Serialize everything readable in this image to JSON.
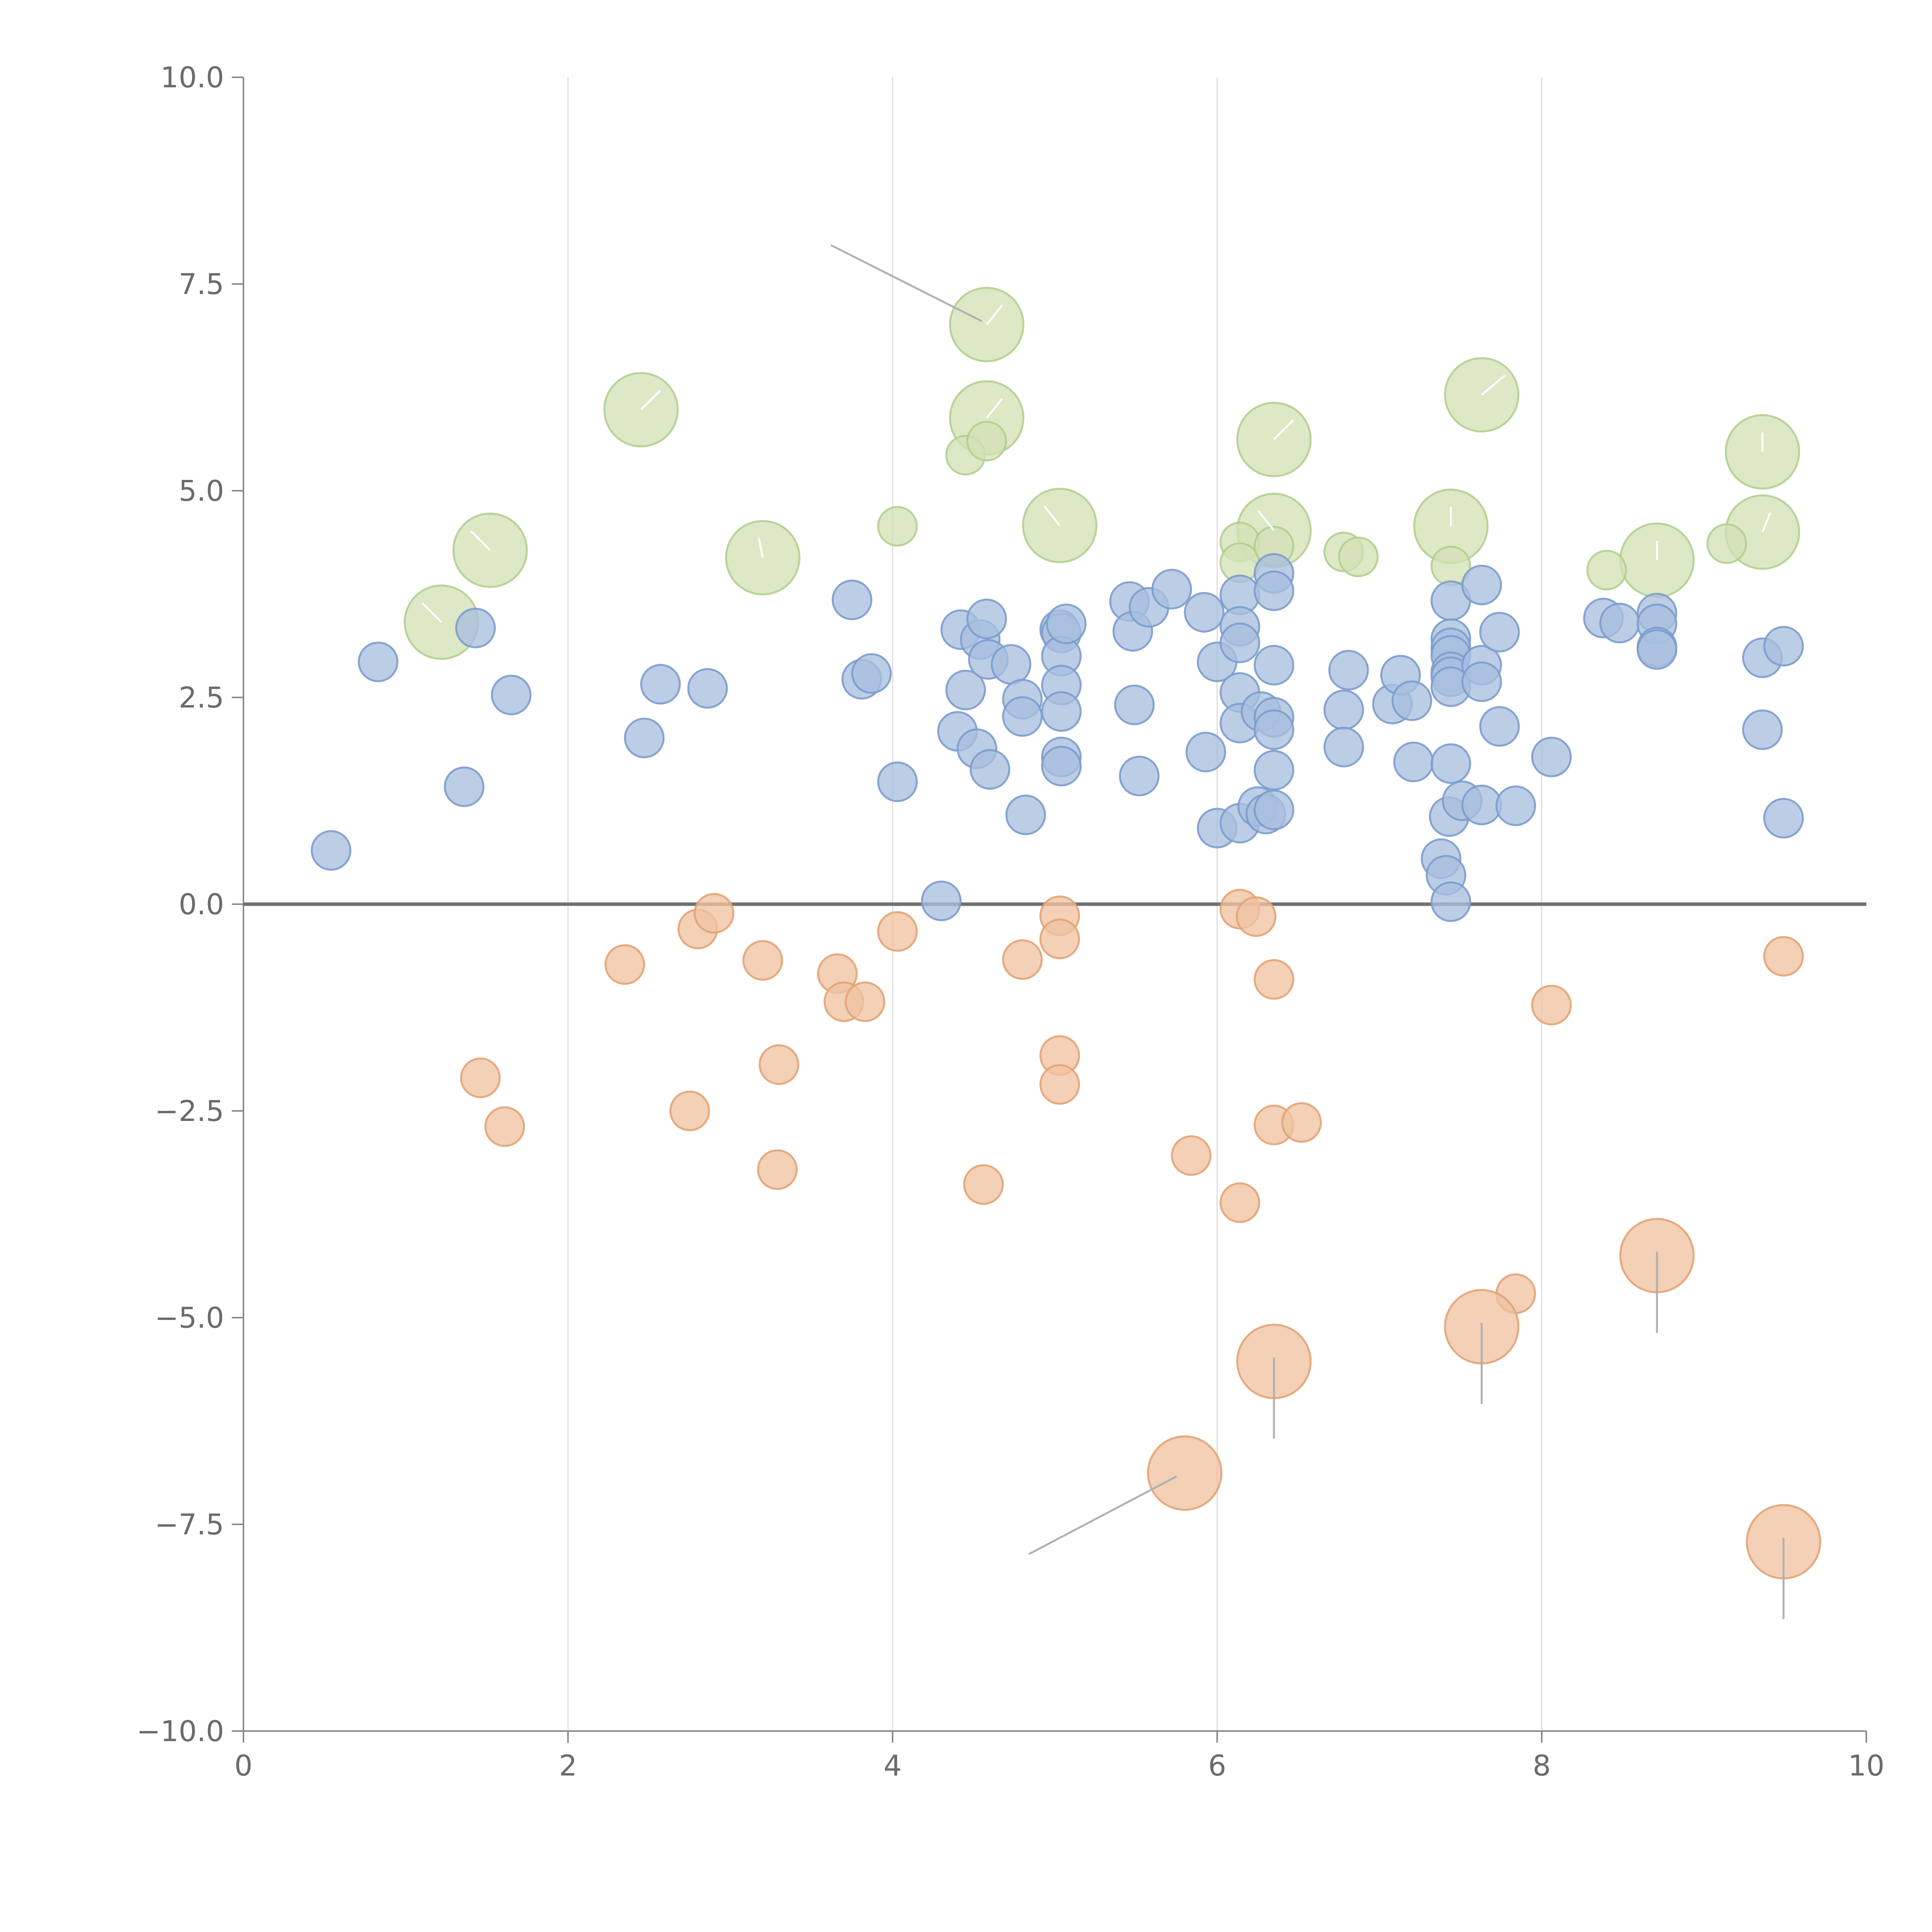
{
  "chart_data": {
    "type": "scatter",
    "title": "",
    "xlabel": "",
    "ylabel": "",
    "xlim": [
      0,
      10
    ],
    "ylim": [
      -10,
      10
    ],
    "grid": "vertical",
    "x_ticks": [
      "0",
      "2",
      "4",
      "6",
      "8",
      "10"
    ],
    "y_ticks": [
      "−10.0",
      "−7.5",
      "−5.0",
      "−2.5",
      "0.0",
      "2.5",
      "5.0",
      "7.5",
      "10.0"
    ],
    "colors": {
      "blue_fill": "#a9bfdf",
      "blue_stroke": "#7b9ccd",
      "orange_fill": "#f0c3a1",
      "orange_stroke": "#e3a273",
      "green_fill": "#d3e2b6",
      "green_stroke": "#b3cf8e"
    },
    "series": [
      {
        "name": "blue",
        "points": [
          [
            0.54,
            0.65
          ],
          [
            0.83,
            2.93
          ],
          [
            1.36,
            1.42
          ],
          [
            1.43,
            3.34
          ],
          [
            1.65,
            2.53
          ],
          [
            2.47,
            2.01
          ],
          [
            2.57,
            2.66
          ],
          [
            2.86,
            2.61
          ],
          [
            3.75,
            3.68
          ],
          [
            3.81,
            2.72
          ],
          [
            3.87,
            2.79
          ],
          [
            4.03,
            1.48
          ],
          [
            4.3,
            0.04
          ],
          [
            4.4,
            2.09
          ],
          [
            4.42,
            3.32
          ],
          [
            4.45,
            2.59
          ],
          [
            4.52,
            1.88
          ],
          [
            4.54,
            3.2
          ],
          [
            4.58,
            3.45
          ],
          [
            4.59,
            2.96
          ],
          [
            4.6,
            1.63
          ],
          [
            4.73,
            2.9
          ],
          [
            4.8,
            2.48
          ],
          [
            4.8,
            2.27
          ],
          [
            4.82,
            1.08
          ],
          [
            5.03,
            3.32
          ],
          [
            5.04,
            3.28
          ],
          [
            5.04,
            3.0
          ],
          [
            5.04,
            2.65
          ],
          [
            5.04,
            2.33
          ],
          [
            5.04,
            1.78
          ],
          [
            5.04,
            1.67
          ],
          [
            5.07,
            3.39
          ],
          [
            5.46,
            3.66
          ],
          [
            5.48,
            3.3
          ],
          [
            5.49,
            2.41
          ],
          [
            5.52,
            1.55
          ],
          [
            5.58,
            3.59
          ],
          [
            5.72,
            3.81
          ],
          [
            5.92,
            3.53
          ],
          [
            5.93,
            1.84
          ],
          [
            6.0,
            2.93
          ],
          [
            6.0,
            0.92
          ],
          [
            6.14,
            3.74
          ],
          [
            6.14,
            3.36
          ],
          [
            6.14,
            3.16
          ],
          [
            6.14,
            2.56
          ],
          [
            6.14,
            2.19
          ],
          [
            6.14,
            0.98
          ],
          [
            6.25,
            1.18
          ],
          [
            6.27,
            2.33
          ],
          [
            6.3,
            1.09
          ],
          [
            6.35,
            4.0
          ],
          [
            6.35,
            3.79
          ],
          [
            6.35,
            2.89
          ],
          [
            6.35,
            2.26
          ],
          [
            6.35,
            2.11
          ],
          [
            6.35,
            1.62
          ],
          [
            6.35,
            1.14
          ],
          [
            6.78,
            2.35
          ],
          [
            6.78,
            1.9
          ],
          [
            6.81,
            2.83
          ],
          [
            7.08,
            2.42
          ],
          [
            7.13,
            2.77
          ],
          [
            7.2,
            2.46
          ],
          [
            7.21,
            1.72
          ],
          [
            7.38,
            0.55
          ],
          [
            7.41,
            0.35
          ],
          [
            7.43,
            1.06
          ],
          [
            7.44,
            3.67
          ],
          [
            7.44,
            3.21
          ],
          [
            7.44,
            3.1
          ],
          [
            7.44,
            3.01
          ],
          [
            7.44,
            2.81
          ],
          [
            7.44,
            2.75
          ],
          [
            7.44,
            2.63
          ],
          [
            7.44,
            1.7
          ],
          [
            7.44,
            0.03
          ],
          [
            7.51,
            1.25
          ],
          [
            7.63,
            3.86
          ],
          [
            7.63,
            2.89
          ],
          [
            7.63,
            2.69
          ],
          [
            7.63,
            1.2
          ],
          [
            7.74,
            3.29
          ],
          [
            7.74,
            2.15
          ],
          [
            7.84,
            1.19
          ],
          [
            8.06,
            1.78
          ],
          [
            8.38,
            3.46
          ],
          [
            8.48,
            3.4
          ],
          [
            8.71,
            3.52
          ],
          [
            8.71,
            3.39
          ],
          [
            8.71,
            3.11
          ],
          [
            8.71,
            3.08
          ],
          [
            9.36,
            2.98
          ],
          [
            9.36,
            2.11
          ],
          [
            9.49,
            3.12
          ],
          [
            9.49,
            1.04
          ]
        ],
        "size": "small"
      },
      {
        "name": "orange",
        "points": [
          [
            1.46,
            -2.1
          ],
          [
            1.61,
            -2.69
          ],
          [
            2.35,
            -0.73
          ],
          [
            2.75,
            -2.5
          ],
          [
            2.8,
            -0.3
          ],
          [
            2.9,
            -0.11
          ],
          [
            3.2,
            -0.68
          ],
          [
            3.29,
            -3.21
          ],
          [
            3.3,
            -1.94
          ],
          [
            3.66,
            -0.84
          ],
          [
            3.7,
            -1.18
          ],
          [
            3.83,
            -1.18
          ],
          [
            4.03,
            -0.33
          ],
          [
            4.56,
            -3.39
          ],
          [
            4.8,
            -0.67
          ],
          [
            5.03,
            -0.14
          ],
          [
            5.03,
            -0.42
          ],
          [
            5.03,
            -1.83
          ],
          [
            5.03,
            -2.18
          ],
          [
            5.84,
            -3.04
          ],
          [
            6.14,
            -3.61
          ],
          [
            6.14,
            -0.06
          ],
          [
            6.24,
            -0.15
          ],
          [
            6.35,
            -0.91
          ],
          [
            6.35,
            -2.67
          ],
          [
            6.52,
            -2.64
          ],
          [
            7.84,
            -4.71
          ],
          [
            8.06,
            -1.22
          ],
          [
            9.49,
            -0.63
          ]
        ],
        "size": "small"
      },
      {
        "name": "orange-large",
        "points": [
          [
            8.71,
            -4.25
          ],
          [
            7.63,
            -5.11
          ],
          [
            6.35,
            -5.53
          ],
          [
            5.8,
            -6.88
          ],
          [
            9.49,
            -7.71
          ]
        ],
        "size": "large"
      },
      {
        "name": "green",
        "points": [
          [
            4.03,
            4.57
          ],
          [
            4.45,
            5.43
          ],
          [
            4.58,
            5.6
          ],
          [
            6.14,
            4.38
          ],
          [
            6.14,
            4.13
          ],
          [
            6.35,
            4.33
          ],
          [
            6.78,
            4.26
          ],
          [
            6.87,
            4.2
          ],
          [
            7.44,
            4.09
          ],
          [
            8.4,
            4.04
          ],
          [
            9.14,
            4.36
          ]
        ],
        "size": "small"
      },
      {
        "name": "green-large",
        "points": [
          [
            1.22,
            3.41
          ],
          [
            1.52,
            4.28
          ],
          [
            2.45,
            5.98
          ],
          [
            3.2,
            4.19
          ],
          [
            4.58,
            7.01
          ],
          [
            4.58,
            5.88
          ],
          [
            5.03,
            4.58
          ],
          [
            6.35,
            5.62
          ],
          [
            6.35,
            4.52
          ],
          [
            7.44,
            4.57
          ],
          [
            7.63,
            6.16
          ],
          [
            8.71,
            4.16
          ],
          [
            9.36,
            5.47
          ],
          [
            9.36,
            4.5
          ]
        ],
        "size": "large"
      }
    ],
    "annotations": [
      {
        "label": "",
        "from": [
          3.62,
          7.97
        ],
        "to": [
          4.55,
          7.05
        ]
      },
      {
        "label": "",
        "from": [
          4.84,
          -7.86
        ],
        "to": [
          5.75,
          -6.92
        ]
      }
    ]
  }
}
